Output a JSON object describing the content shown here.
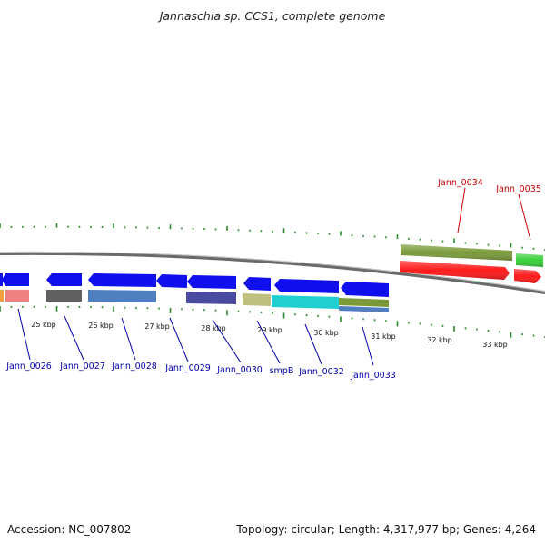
{
  "title": "Jannaschia sp. CCS1, complete genome",
  "accession_label": "Accession: NC_007802",
  "topology_label": "Topology: circular; Length: 4,317,977 bp; Genes: 4,264",
  "colors": {
    "forward_label": "#cc0000",
    "reverse_label": "#0000aa",
    "tick": "#2a8a2a",
    "backbone": "#808080"
  },
  "kbp_labels": [
    "25 kbp",
    "26 kbp",
    "27 kbp",
    "28 kbp",
    "29 kbp",
    "30 kbp",
    "31 kbp",
    "32 kbp",
    "33 kbp"
  ],
  "forward_genes": [
    {
      "label": "Jann_0034",
      "arrow_color": "#7a9a3a",
      "band_color": "#ff1a1a"
    },
    {
      "label": "Jann_0035",
      "arrow_color": "#3ad03a",
      "band_color": "#ff1a1a"
    }
  ],
  "reverse_genes": [
    {
      "label": "Jann_0026",
      "arrow_color": "#1010ee",
      "band_color": "#f08080"
    },
    {
      "label": "Jann_0027",
      "arrow_color": "#1010ee",
      "band_color": "#606060"
    },
    {
      "label": "Jann_0028",
      "arrow_color": "#1010ee",
      "band_color": "#4f7fc0"
    },
    {
      "label": "Jann_0029",
      "arrow_color": "#1010ee",
      "band_color": "#4f7fc0"
    },
    {
      "label": "Jann_0030",
      "arrow_color": "#1010ee",
      "band_color": "#4a4aa0"
    },
    {
      "label": "smpB",
      "arrow_color": "#1010ee",
      "band_color": "#bfbf80"
    },
    {
      "label": "Jann_0032",
      "arrow_color": "#1010ee",
      "band_color": "#20d0d0"
    },
    {
      "label": "Jann_0033",
      "arrow_color": "#1010ee",
      "band_color": "#7a9a3a"
    }
  ]
}
